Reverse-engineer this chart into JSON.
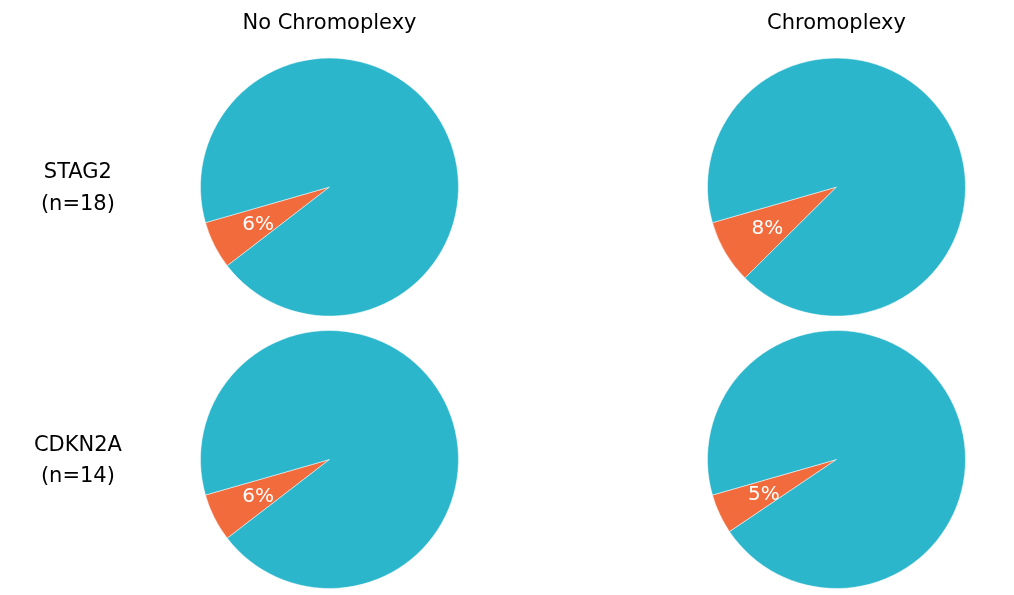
{
  "chart_data": [
    {
      "type": "pie",
      "title": "No Chromoplexy",
      "annotations": [
        "STAG2\n(n=18)"
      ],
      "categories": [
        null,
        null
      ],
      "values": [
        6,
        94
      ],
      "colors": [
        "#f26b3c",
        "#2cb6cc"
      ],
      "value_labels": [
        "6%",
        null
      ]
    },
    {
      "type": "pie",
      "title": "Chromoplexy",
      "categories": [
        null,
        null
      ],
      "values": [
        8,
        92
      ],
      "colors": [
        "#f26b3c",
        "#2cb6cc"
      ],
      "value_labels": [
        "8%",
        null
      ]
    },
    {
      "type": "pie",
      "annotations": [
        "CDKN2A\n(n=14)"
      ],
      "categories": [
        null,
        null
      ],
      "values": [
        6,
        94
      ],
      "colors": [
        "#f26b3c",
        "#2cb6cc"
      ],
      "value_labels": [
        "6%",
        null
      ]
    },
    {
      "type": "pie",
      "categories": [
        null,
        null
      ],
      "values": [
        5,
        95
      ],
      "colors": [
        "#f26b3c",
        "#2cb6cc"
      ],
      "value_labels": [
        "5%",
        null
      ]
    }
  ]
}
